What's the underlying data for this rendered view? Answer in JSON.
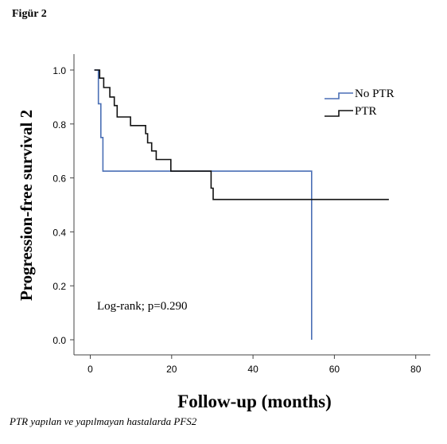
{
  "figure_label": "Figür 2",
  "caption": "PTR yapılan ve yapılmayan hastalarda PFS2",
  "chart_data": {
    "type": "line",
    "subtype": "kaplan-meier step",
    "title": "",
    "xlabel": "Follow-up (months)",
    "ylabel": "Progression-free survival 2",
    "xlim": [
      0,
      80
    ],
    "ylim": [
      0,
      1
    ],
    "x_ticks": [
      "0",
      "20",
      "40",
      "60",
      "80"
    ],
    "x_tick_values": [
      0,
      20,
      40,
      60,
      80
    ],
    "y_ticks": [
      "0.0",
      "0.2",
      "0.4",
      "0.6",
      "0.8",
      "1.0"
    ],
    "y_tick_values": [
      0,
      0.2,
      0.4,
      0.6,
      0.8,
      1.0
    ],
    "grid": false,
    "legend_position": "top-right",
    "annotation": "Log-rank; p=0.290",
    "series": [
      {
        "name": "No PTR",
        "color": "#4a6fb5",
        "points": [
          [
            1,
            1.0
          ],
          [
            2,
            1.0
          ],
          [
            2,
            0.875
          ],
          [
            2.6,
            0.875
          ],
          [
            2.6,
            0.75
          ],
          [
            3.1,
            0.75
          ],
          [
            3.1,
            0.625
          ],
          [
            54.4,
            0.625
          ],
          [
            54.4,
            0.0
          ]
        ]
      },
      {
        "name": "PTR",
        "color": "#111111",
        "points": [
          [
            1,
            1.0
          ],
          [
            2.3,
            1.0
          ],
          [
            2.3,
            0.97
          ],
          [
            3.3,
            0.97
          ],
          [
            3.3,
            0.935
          ],
          [
            4.8,
            0.935
          ],
          [
            4.8,
            0.9
          ],
          [
            5.9,
            0.9
          ],
          [
            5.9,
            0.868
          ],
          [
            6.6,
            0.868
          ],
          [
            6.6,
            0.826
          ],
          [
            9.9,
            0.826
          ],
          [
            9.9,
            0.794
          ],
          [
            13.6,
            0.794
          ],
          [
            13.6,
            0.764
          ],
          [
            14.1,
            0.764
          ],
          [
            14.1,
            0.73
          ],
          [
            15.1,
            0.73
          ],
          [
            15.1,
            0.7
          ],
          [
            16.2,
            0.7
          ],
          [
            16.2,
            0.668
          ],
          [
            19.8,
            0.668
          ],
          [
            19.8,
            0.625
          ],
          [
            29.7,
            0.625
          ],
          [
            29.7,
            0.562
          ],
          [
            30.2,
            0.562
          ],
          [
            30.2,
            0.52
          ],
          [
            73.4,
            0.52
          ]
        ]
      }
    ]
  }
}
